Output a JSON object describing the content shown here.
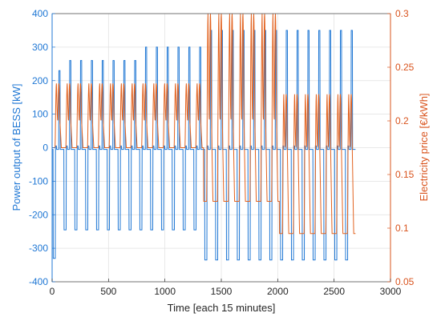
{
  "chart_data": {
    "type": "line",
    "title": "",
    "xlabel": "Time [each 15 minutes]",
    "ylabel_left": "Power output of BESS [kW]",
    "ylabel_right": "Electricity price [€/kWh]",
    "xlim": [
      0,
      3000
    ],
    "ylim_left": [
      -400,
      400
    ],
    "ylim_right": [
      0.05,
      0.3
    ],
    "grid": true,
    "legend": "none",
    "x_ticks": [
      "0",
      "500",
      "1000",
      "1500",
      "2000",
      "2500",
      "3000"
    ],
    "y_left_ticks": [
      "-400",
      "-300",
      "-200",
      "-100",
      "0",
      "100",
      "200",
      "300",
      "400"
    ],
    "y_right_ticks": [
      "0.05",
      "0.1",
      "0.15",
      "0.2",
      "0.25",
      "0.3"
    ],
    "colors": {
      "power": "#1f77d4",
      "price": "#e2621f",
      "left_axis": "#1f77d4",
      "right_axis": "#d9541e",
      "grid": "#e0e0e0"
    },
    "series": [
      {
        "axis": "left",
        "period": 96,
        "x_range": [
          0,
          2690
        ],
        "segments": [
          {
            "from_day": 0,
            "to_day": 1,
            "charge": -330,
            "discharge": 230
          },
          {
            "from_day": 1,
            "to_day": 8,
            "charge": -245,
            "discharge": 260
          },
          {
            "from_day": 8,
            "to_day": 14,
            "charge": -245,
            "discharge": 300
          },
          {
            "from_day": 14,
            "to_day": 28,
            "charge": -335,
            "discharge": 350
          }
        ]
      },
      {
        "axis": "right",
        "period": 96,
        "x_range": [
          0,
          2690
        ],
        "segments": [
          {
            "from_day": 0,
            "to_day": 14,
            "low": 0.175,
            "mid": 0.2,
            "high": 0.235
          },
          {
            "from_day": 14,
            "to_day": 21,
            "low": 0.125,
            "mid": 0.2,
            "high": 0.3
          },
          {
            "from_day": 21,
            "to_day": 28,
            "low": 0.095,
            "mid": 0.175,
            "high": 0.225
          }
        ]
      }
    ]
  }
}
